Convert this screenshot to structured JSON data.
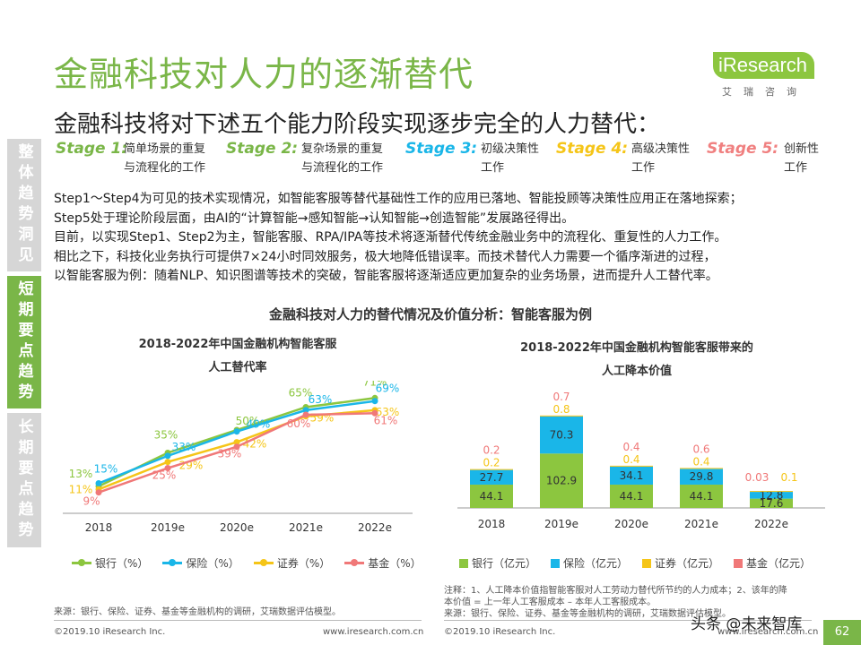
{
  "header": {
    "title": "金融科技对人力的逐渐替代",
    "subtitle": "金融科技将对下述五个能力阶段实现逐步完全的人力替代：",
    "logo_text": "iResearch",
    "logo_sub": "艾瑞咨询"
  },
  "sidebar": {
    "tabs": [
      {
        "label": "整体趋势洞见",
        "active": false
      },
      {
        "label": "短期要点趋势",
        "active": true
      },
      {
        "label": "长期要点趋势",
        "active": false
      }
    ]
  },
  "stages": [
    {
      "label": "Stage 1:",
      "line1": "简单场景的重复",
      "line2": "与流程化的工作",
      "color": "#7ab648"
    },
    {
      "label": "Stage 2:",
      "line1": "复杂场景的重复",
      "line2": "与流程化的工作",
      "color": "#7ab648"
    },
    {
      "label": "Stage 3:",
      "line1": "初级决策性",
      "line2": "工作",
      "color": "#1ab6e8"
    },
    {
      "label": "Stage 4:",
      "line1": "高级决策性",
      "line2": "工作",
      "color": "#f5c518"
    },
    {
      "label": "Stage 5:",
      "line1": "创新性",
      "line2": "工作",
      "color": "#f08080"
    }
  ],
  "body": {
    "lines": [
      "Step1～Step4为可见的技术实现情况，如智能客服等替代基础性工作的应用已落地、智能投顾等决策性应用正在落地探索；",
      "Step5处于理论阶段层面，由AI的“计算智能→感知智能→认知智能→创造智能”发展路径得出。",
      "目前，以实现Step1、Step2为主，智能客服、RPA/IPA等技术将逐渐替代传统金融业务中的流程化、重复性的人力工作。",
      "相比之下，科技化业务执行可提供7×24小时同效服务，极大地降低错误率。而技术替代人力需要一个循序渐进的过程，",
      "以智能客服为例：随着NLP、知识图谱等技术的突破，智能客服将逐渐适应更加复杂的业务场景，进而提升人工替代率。"
    ],
    "section_title": "金融科技对人力的替代情况及价值分析：智能客服为例"
  },
  "chart_data": [
    {
      "type": "line",
      "title_line1": "2018-2022年中国金融机构智能客服",
      "title_line2": "人工替代率",
      "categories": [
        "2018",
        "2019e",
        "2020e",
        "2021e",
        "2022e"
      ],
      "series": [
        {
          "name": "银行（%）",
          "color": "#8cc63f",
          "values": [
            13,
            35,
            50,
            65,
            71
          ],
          "labels": [
            "13%",
            "35%",
            "50%",
            "65%",
            "71%"
          ]
        },
        {
          "name": "保险（%）",
          "color": "#1ab6e8",
          "values": [
            15,
            33,
            49,
            63,
            69
          ],
          "labels": [
            "15%",
            "33%",
            "49%",
            "63%",
            "69%"
          ]
        },
        {
          "name": "证券（%）",
          "color": "#f5c518",
          "values": [
            11,
            29,
            42,
            59,
            63
          ],
          "labels": [
            "11%",
            "29%",
            "42%",
            "59%",
            "63%"
          ]
        },
        {
          "name": "基金（%）",
          "color": "#f07878",
          "values": [
            9,
            25,
            39,
            60,
            61
          ],
          "labels": [
            "9%",
            "25%",
            "39%",
            "60%",
            "61%"
          ]
        }
      ]
    },
    {
      "type": "bar",
      "stacked": true,
      "title_line1": "2018-2022年中国金融机构智能客服带来的",
      "title_line2": "人工降本价值",
      "categories": [
        "2018",
        "2019e",
        "2020e",
        "2021e",
        "2022e"
      ],
      "series": [
        {
          "name": "银行（亿元）",
          "color": "#8cc63f",
          "values": [
            44.1,
            102.9,
            44.1,
            44.1,
            17.6
          ]
        },
        {
          "name": "保险（亿元）",
          "color": "#1ab6e8",
          "values": [
            27.7,
            70.3,
            34.1,
            29.8,
            12.8
          ]
        },
        {
          "name": "证券（亿元）",
          "color": "#f5c518",
          "values": [
            0.2,
            0.8,
            0.4,
            0.4,
            0.1
          ]
        },
        {
          "name": "基金（亿元）",
          "color": "#f07878",
          "values": [
            0.2,
            0.7,
            0.4,
            0.6,
            0.03
          ]
        }
      ]
    }
  ],
  "notes": {
    "left_source": "来源：银行、保险、证券、基金等金融机构的调研，艾瑞数据评估模型。",
    "right_note1": "注释：1、人工降本价值指智能客服对人工劳动力替代所节约的人力成本；2、该年的降",
    "right_note2": "本价值 = 上一年人工客服成本 – 本年人工客服成本。",
    "right_source": "来源：银行、保险、证券、基金等金融机构的调研，艾瑞数据评估模型。"
  },
  "footer": {
    "copyright": "©2019.10 iResearch Inc.",
    "website": "www.iresearch.com.cn",
    "page_number": "62",
    "watermark": "头条 @未来智库"
  }
}
